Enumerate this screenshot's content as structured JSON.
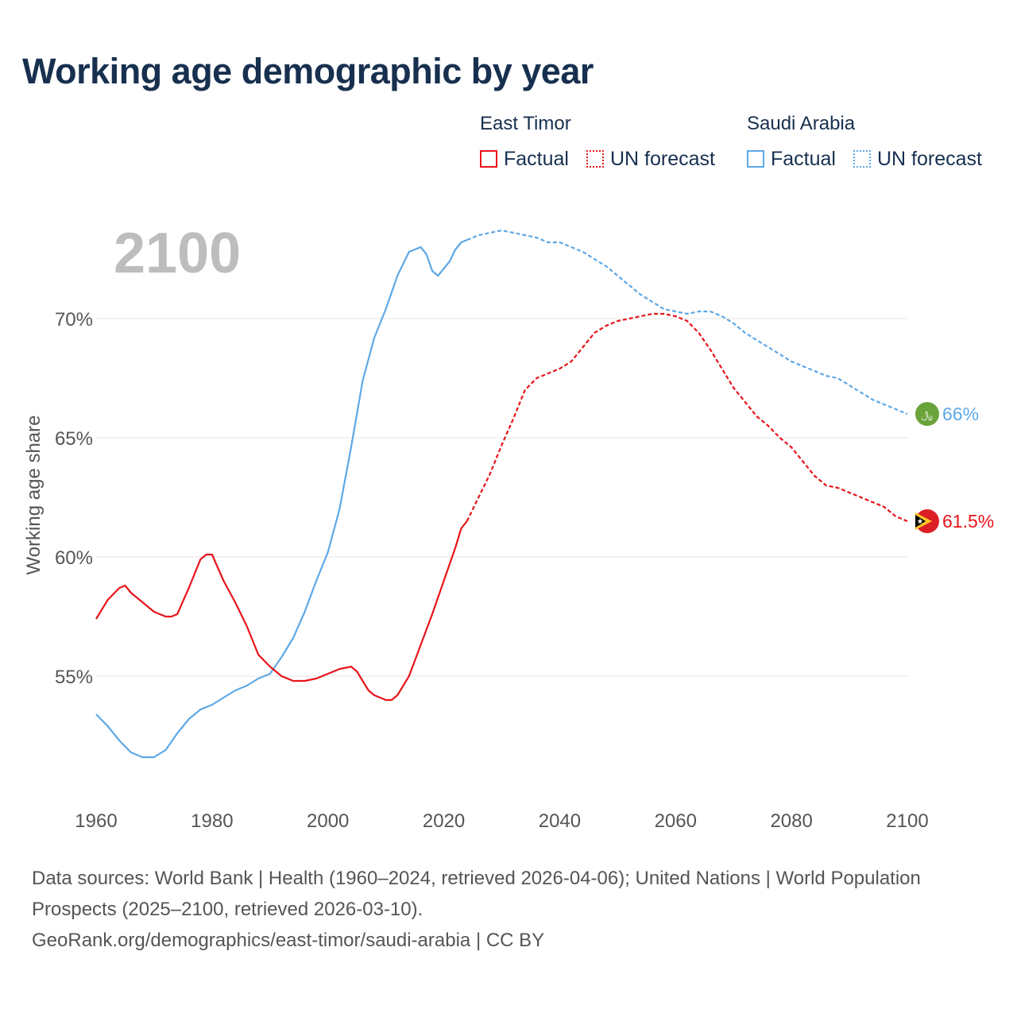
{
  "title": "Working age demographic by year",
  "legend": {
    "east_timor": {
      "country": "East Timor",
      "factual": "Factual",
      "forecast": "UN forecast",
      "color": "#e8141b"
    },
    "saudi_arabia": {
      "country": "Saudi Arabia",
      "factual": "Factual",
      "forecast": "UN forecast",
      "color": "#5ea8e6"
    }
  },
  "year_label": "2100",
  "footer": {
    "line1": "Data sources: World Bank | Health (1960–2024, retrieved 2026-04-06); United Nations | World Population Prospects (2025–2100, retrieved 2026-03-10).",
    "line2": "GeoRank.org/demographics/east-timor/saudi-arabia | CC BY"
  },
  "chart_data": {
    "type": "line",
    "ylabel": "Working age share",
    "xlabel": "",
    "xlim": [
      1960,
      2100
    ],
    "ylim": [
      51,
      75
    ],
    "x_ticks": [
      1960,
      1980,
      2000,
      2020,
      2040,
      2060,
      2080,
      2100
    ],
    "y_ticks": [
      55,
      60,
      65,
      70
    ],
    "y_tick_labels": [
      "55%",
      "60%",
      "65%",
      "70%"
    ],
    "series": [
      {
        "name": "East Timor",
        "color": "#e8141b",
        "end_label": "61.5%",
        "factual_x": [
          1960,
          1962,
          1964,
          1965,
          1966,
          1968,
          1970,
          1972,
          1973,
          1974,
          1976,
          1978,
          1979,
          1980,
          1982,
          1984,
          1986,
          1988,
          1990,
          1992,
          1994,
          1996,
          1998,
          2000,
          2002,
          2004,
          2005,
          2006,
          2007,
          2008,
          2010,
          2011,
          2012,
          2014,
          2016,
          2018,
          2020,
          2022,
          2023,
          2024
        ],
        "factual_y": [
          57.4,
          58.2,
          58.7,
          58.8,
          58.5,
          58.1,
          57.7,
          57.5,
          57.5,
          57.6,
          58.7,
          59.9,
          60.1,
          60.1,
          59.0,
          58.1,
          57.1,
          55.9,
          55.4,
          55.0,
          54.8,
          54.8,
          54.9,
          55.1,
          55.3,
          55.4,
          55.2,
          54.8,
          54.4,
          54.2,
          54.0,
          54.0,
          54.2,
          55.0,
          56.3,
          57.6,
          59.0,
          60.4,
          61.2,
          61.5
        ],
        "forecast_x": [
          2024,
          2026,
          2028,
          2030,
          2032,
          2034,
          2036,
          2038,
          2040,
          2042,
          2044,
          2046,
          2048,
          2050,
          2052,
          2054,
          2056,
          2058,
          2060,
          2062,
          2064,
          2066,
          2068,
          2070,
          2072,
          2074,
          2076,
          2078,
          2080,
          2082,
          2084,
          2086,
          2088,
          2090,
          2092,
          2094,
          2096,
          2098,
          2100
        ],
        "forecast_y": [
          61.5,
          62.5,
          63.5,
          64.7,
          65.8,
          67.0,
          67.5,
          67.7,
          67.9,
          68.2,
          68.8,
          69.4,
          69.7,
          69.9,
          70.0,
          70.1,
          70.2,
          70.2,
          70.1,
          69.9,
          69.4,
          68.7,
          67.9,
          67.1,
          66.5,
          65.9,
          65.5,
          65.0,
          64.6,
          64.0,
          63.4,
          63.0,
          62.9,
          62.7,
          62.5,
          62.3,
          62.1,
          61.7,
          61.5
        ]
      },
      {
        "name": "Saudi Arabia",
        "color": "#5ea8e6",
        "end_label": "66%",
        "factual_x": [
          1960,
          1962,
          1964,
          1966,
          1968,
          1970,
          1972,
          1974,
          1976,
          1978,
          1980,
          1982,
          1984,
          1986,
          1988,
          1990,
          1992,
          1994,
          1996,
          1998,
          2000,
          2002,
          2004,
          2006,
          2008,
          2010,
          2012,
          2014,
          2016,
          2017,
          2018,
          2019,
          2020,
          2021,
          2022,
          2023,
          2024
        ],
        "factual_y": [
          53.4,
          52.9,
          52.3,
          51.8,
          51.6,
          51.6,
          51.9,
          52.6,
          53.2,
          53.6,
          53.8,
          54.1,
          54.4,
          54.6,
          54.9,
          55.1,
          55.8,
          56.6,
          57.7,
          59.0,
          60.2,
          62.0,
          64.6,
          67.4,
          69.2,
          70.4,
          71.8,
          72.8,
          73.0,
          72.7,
          72.0,
          71.8,
          72.1,
          72.4,
          72.9,
          73.2,
          73.3
        ],
        "forecast_x": [
          2024,
          2026,
          2028,
          2030,
          2032,
          2034,
          2036,
          2038,
          2040,
          2042,
          2044,
          2046,
          2048,
          2050,
          2052,
          2054,
          2056,
          2058,
          2060,
          2062,
          2064,
          2066,
          2068,
          2070,
          2072,
          2074,
          2076,
          2078,
          2080,
          2082,
          2084,
          2086,
          2088,
          2090,
          2092,
          2094,
          2096,
          2098,
          2100
        ],
        "forecast_y": [
          73.3,
          73.5,
          73.6,
          73.7,
          73.6,
          73.5,
          73.4,
          73.2,
          73.2,
          73.0,
          72.8,
          72.5,
          72.2,
          71.8,
          71.4,
          71.0,
          70.7,
          70.4,
          70.3,
          70.2,
          70.3,
          70.3,
          70.1,
          69.8,
          69.4,
          69.1,
          68.8,
          68.5,
          68.2,
          68.0,
          67.8,
          67.6,
          67.5,
          67.2,
          66.9,
          66.6,
          66.4,
          66.2,
          66.0
        ]
      }
    ]
  }
}
